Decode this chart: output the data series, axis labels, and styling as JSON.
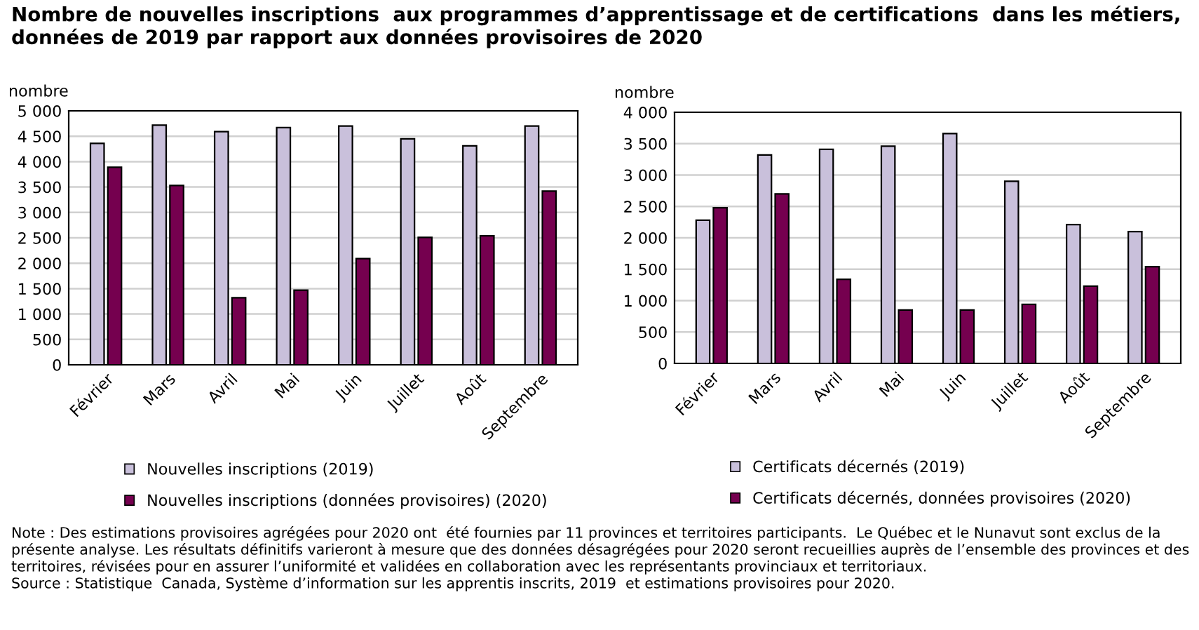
{
  "chart_data": [
    {
      "type": "bar",
      "title": "Nombre de nouvelles inscriptions  aux programmes d’apprentissage et de certifications  dans les métiers, données de 2019 par rapport aux données provisoires de 2020",
      "ylabel": "nombre",
      "categories": [
        "Février",
        "Mars",
        "Avril",
        "Mai",
        "Juin",
        "Juillet",
        "Août",
        "Septembre"
      ],
      "series": [
        {
          "name": "Nouvelles inscriptions (2019)",
          "color": "#c9c0db",
          "values": [
            4360,
            4720,
            4590,
            4670,
            4700,
            4450,
            4310,
            4700
          ]
        },
        {
          "name": "Nouvelles inscriptions (données provisoires) (2020)",
          "color": "#75004f",
          "values": [
            3890,
            3530,
            1320,
            1470,
            2090,
            2510,
            2540,
            3420
          ]
        }
      ],
      "ylim": [
        0,
        5000
      ],
      "yticks": [
        0,
        500,
        {
          "value": 1000,
          "label": "1 000"
        },
        {
          "value": 1500,
          "label": "1 500"
        },
        {
          "value": 2000,
          "label": "2 000"
        },
        {
          "value": 2500,
          "label": "2 500"
        },
        {
          "value": 3000,
          "label": "3 000"
        },
        {
          "value": 3500,
          "label": "3 500"
        },
        {
          "value": 4000,
          "label": "4 000"
        },
        {
          "value": 4500,
          "label": "4 500"
        },
        {
          "value": 5000,
          "label": "5 000"
        }
      ],
      "grid": "y",
      "legend": "bottom",
      "annotations": [
        "Note : Des estimations provisoires agrégées pour 2020 ont  été fournies par 11 provinces et territoires participants.  Le Québec et le Nunavut sont exclus de la présente analyse. Les résultats définitifs varieront à mesure que des données désagrégées pour 2020 seront recueillies auprès de l’ensemble des provinces et des territoires, révisées pour en assurer l’uniformité et validées en collaboration avec les représentants provinciaux et territoriaux.",
        "Source : Statistique  Canada, Système d’information sur les apprentis inscrits, 2019  et estimations provisoires pour 2020."
      ]
    },
    {
      "type": "bar",
      "ylabel": "nombre",
      "categories": [
        "Février",
        "Mars",
        "Avril",
        "Mai",
        "Juin",
        "Juillet",
        "Août",
        "Septembre"
      ],
      "series": [
        {
          "name": "Certificats décernés (2019)",
          "color": "#c9c0db",
          "values": [
            2280,
            3320,
            3410,
            3460,
            3660,
            2900,
            2210,
            2100
          ]
        },
        {
          "name": "Certificats décernés, données provisoires (2020)",
          "color": "#75004f",
          "values": [
            2480,
            2700,
            1340,
            850,
            850,
            940,
            1230,
            1540
          ]
        }
      ],
      "ylim": [
        0,
        4000
      ],
      "yticks": [
        0,
        500,
        {
          "value": 1000,
          "label": "1 000"
        },
        {
          "value": 1500,
          "label": "1 500"
        },
        {
          "value": 2000,
          "label": "2 000"
        },
        {
          "value": 2500,
          "label": "2 500"
        },
        {
          "value": 3000,
          "label": "3 000"
        },
        {
          "value": 3500,
          "label": "3 500"
        },
        {
          "value": 4000,
          "label": "4 000"
        }
      ],
      "grid": "y",
      "legend": "bottom"
    }
  ]
}
